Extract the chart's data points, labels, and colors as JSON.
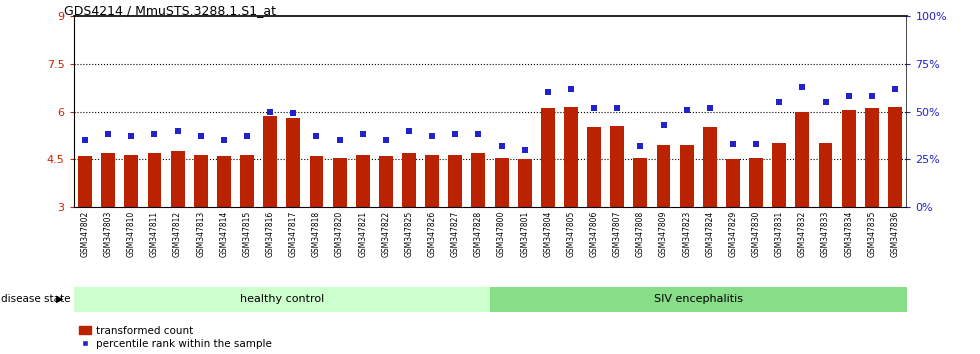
{
  "title": "GDS4214 / MmuSTS.3288.1.S1_at",
  "samples": [
    "GSM347802",
    "GSM347803",
    "GSM347810",
    "GSM347811",
    "GSM347812",
    "GSM347813",
    "GSM347814",
    "GSM347815",
    "GSM347816",
    "GSM347817",
    "GSM347818",
    "GSM347820",
    "GSM347821",
    "GSM347822",
    "GSM347825",
    "GSM347826",
    "GSM347827",
    "GSM347828",
    "GSM347800",
    "GSM347801",
    "GSM347804",
    "GSM347805",
    "GSM347806",
    "GSM347807",
    "GSM347808",
    "GSM347809",
    "GSM347823",
    "GSM347824",
    "GSM347829",
    "GSM347830",
    "GSM347831",
    "GSM347832",
    "GSM347833",
    "GSM347834",
    "GSM347835",
    "GSM347836"
  ],
  "bar_values": [
    4.6,
    4.7,
    4.65,
    4.7,
    4.75,
    4.65,
    4.6,
    4.65,
    5.85,
    5.8,
    4.6,
    4.55,
    4.65,
    4.6,
    4.7,
    4.65,
    4.65,
    4.7,
    4.55,
    4.5,
    6.1,
    6.15,
    5.5,
    5.55,
    4.55,
    4.95,
    4.95,
    5.5,
    4.5,
    4.55,
    5.0,
    6.0,
    5.0,
    6.05,
    6.1,
    6.15
  ],
  "percentile_values": [
    35,
    38,
    37,
    38,
    40,
    37,
    35,
    37,
    50,
    49,
    37,
    35,
    38,
    35,
    40,
    37,
    38,
    38,
    32,
    30,
    60,
    62,
    52,
    52,
    32,
    43,
    51,
    52,
    33,
    33,
    55,
    63,
    55,
    58,
    58,
    62
  ],
  "healthy_count": 18,
  "ymin": 3,
  "ymax": 9,
  "ylim_right": [
    0,
    100
  ],
  "yticks_left": [
    3,
    4.5,
    6,
    7.5,
    9
  ],
  "yticks_right": [
    0,
    25,
    50,
    75,
    100
  ],
  "ytick_labels_right": [
    "0%",
    "25%",
    "50%",
    "75%",
    "100%"
  ],
  "bar_color": "#BB2200",
  "dot_color": "#2222CC",
  "healthy_bg": "#CCFFCC",
  "siv_bg": "#88DD88",
  "label_healthy": "healthy control",
  "label_siv": "SIV encephalitis",
  "legend_bar": "transformed count",
  "legend_dot": "percentile rank within the sample",
  "disease_state_label": "disease state",
  "grid_values": [
    4.5,
    6.0,
    7.5
  ],
  "tick_color_left": "#CC2200",
  "tick_color_right": "#2222CC",
  "xtick_bg": "#CCCCCC"
}
